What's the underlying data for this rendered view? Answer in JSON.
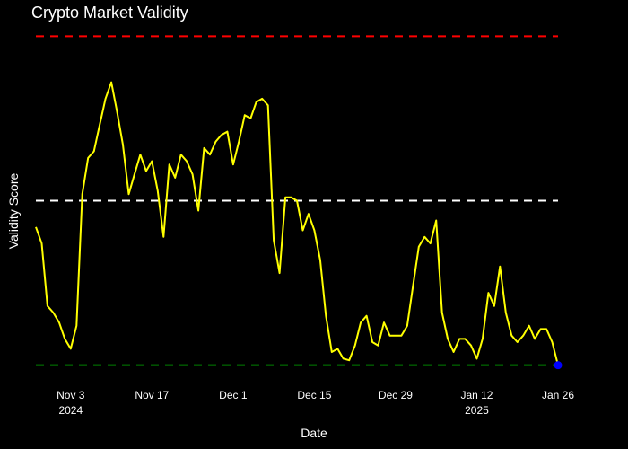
{
  "chart_data": {
    "type": "line",
    "title": "Crypto Market Validity",
    "xlabel": "Date",
    "ylabel": "Validity Score",
    "background": "#000000",
    "grid": false,
    "legend": "none",
    "x_start": "2024-10-28",
    "x_end": "2025-01-26",
    "x_ticks": [
      {
        "date": "2024-11-03",
        "label": "Nov 3",
        "sublabel": "2024"
      },
      {
        "date": "2024-11-17",
        "label": "Nov 17",
        "sublabel": ""
      },
      {
        "date": "2024-12-01",
        "label": "Dec 1",
        "sublabel": ""
      },
      {
        "date": "2024-12-15",
        "label": "Dec 15",
        "sublabel": ""
      },
      {
        "date": "2024-12-29",
        "label": "Dec 29",
        "sublabel": ""
      },
      {
        "date": "2025-01-12",
        "label": "Jan 12",
        "sublabel": "2025"
      },
      {
        "date": "2025-01-26",
        "label": "Jan 26",
        "sublabel": ""
      }
    ],
    "ylim": [
      -0.05,
      1.05
    ],
    "reference_lines": [
      {
        "y": 1.0,
        "color": "#ff0000"
      },
      {
        "y": 0.5,
        "color": "#ffffff"
      },
      {
        "y": 0.0,
        "color": "#008000"
      }
    ],
    "series": [
      {
        "color": "#ffff00",
        "values": [
          0.42,
          0.37,
          0.18,
          0.16,
          0.13,
          0.08,
          0.05,
          0.12,
          0.52,
          0.63,
          0.65,
          0.73,
          0.81,
          0.86,
          0.77,
          0.67,
          0.52,
          0.58,
          0.64,
          0.59,
          0.62,
          0.53,
          0.39,
          0.61,
          0.57,
          0.64,
          0.62,
          0.58,
          0.47,
          0.66,
          0.64,
          0.68,
          0.7,
          0.71,
          0.61,
          0.68,
          0.76,
          0.75,
          0.8,
          0.81,
          0.79,
          0.38,
          0.28,
          0.51,
          0.51,
          0.5,
          0.41,
          0.46,
          0.41,
          0.32,
          0.15,
          0.04,
          0.05,
          0.02,
          0.015,
          0.06,
          0.13,
          0.15,
          0.07,
          0.06,
          0.13,
          0.09,
          0.09,
          0.09,
          0.12,
          0.24,
          0.36,
          0.39,
          0.37,
          0.44,
          0.16,
          0.08,
          0.04,
          0.08,
          0.08,
          0.06,
          0.02,
          0.08,
          0.22,
          0.18,
          0.3,
          0.16,
          0.09,
          0.07,
          0.09,
          0.12,
          0.08,
          0.11,
          0.11,
          0.07,
          0.0
        ]
      }
    ],
    "highlight_point": {
      "index": 90,
      "color": "#0000ff"
    }
  }
}
